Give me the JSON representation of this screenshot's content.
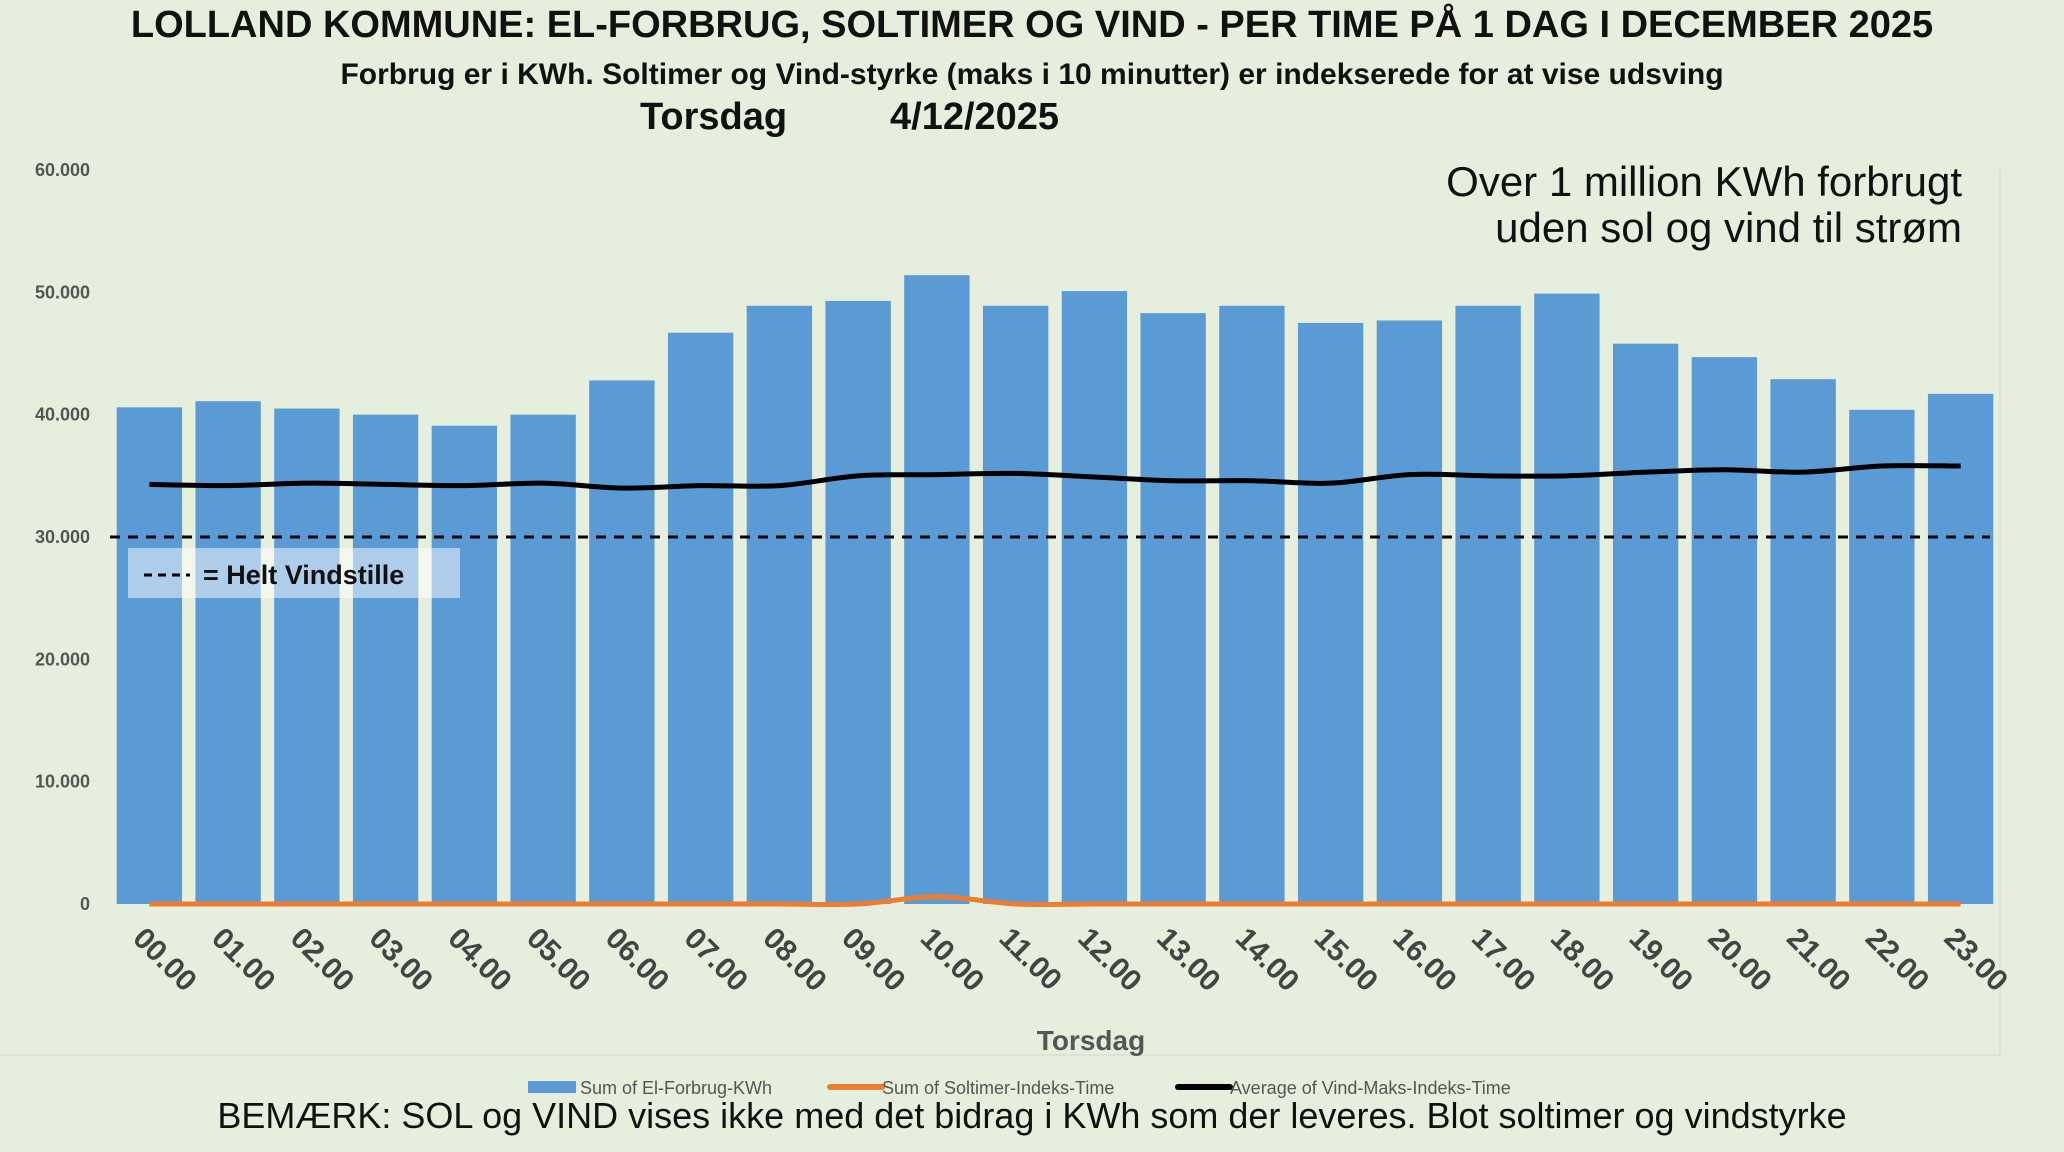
{
  "header": {
    "title": "LOLLAND KOMMUNE: EL-FORBRUG, SOLTIMER OG VIND - PER TIME PÅ 1 DAG I DECEMBER 2025",
    "subtitle": "Forbrug er i KWh. Soltimer og Vind-styrke (maks i 10 minutter) er indekserede for at vise udsving",
    "day": "Torsdag",
    "date": "4/12/2025"
  },
  "annotation": {
    "line1": "Over 1 million KWh forbrugt",
    "line2": "uden sol og vind til strøm"
  },
  "reference_label": "= Helt Vindstille",
  "footer_note": "BEMÆRK: SOL og VIND vises ikke med det bidrag i KWh som der leveres. Blot soltimer og vindstyrke",
  "colors": {
    "background": "#e6efdd",
    "bars": "#5b9bd5",
    "sun_line": "#ed7d31",
    "wind_line": "#000000"
  },
  "chart_data": {
    "type": "bar",
    "xlabel": "Torsdag",
    "ylabel": "",
    "ylim": [
      0,
      60000
    ],
    "yticks": [
      0,
      10000,
      20000,
      30000,
      40000,
      50000,
      60000
    ],
    "ytick_labels": [
      "0",
      "10.000",
      "20.000",
      "30.000",
      "40.000",
      "50.000",
      "60.000"
    ],
    "categories": [
      "00.00",
      "01.00",
      "02.00",
      "03.00",
      "04.00",
      "05.00",
      "06.00",
      "07.00",
      "08.00",
      "09.00",
      "10.00",
      "11.00",
      "12.00",
      "13.00",
      "14.00",
      "15.00",
      "16.00",
      "17.00",
      "18.00",
      "19.00",
      "20.00",
      "21.00",
      "22.00",
      "23.00"
    ],
    "series": [
      {
        "name": "Sum of El-Forbrug-KWh",
        "type": "bar",
        "values": [
          40600,
          41100,
          40500,
          40000,
          39100,
          40000,
          42800,
          46700,
          48900,
          49300,
          51400,
          48900,
          50100,
          48300,
          48900,
          47500,
          47700,
          48900,
          49900,
          45800,
          44700,
          42900,
          40400,
          41700
        ]
      },
      {
        "name": "Sum of Soltimer-Indeks-Time",
        "type": "line",
        "values": [
          0,
          0,
          0,
          0,
          0,
          0,
          0,
          0,
          0,
          0,
          600,
          0,
          0,
          0,
          0,
          0,
          0,
          0,
          0,
          0,
          0,
          0,
          0,
          0
        ]
      },
      {
        "name": "Average of Vind-Maks-Indeks-Time",
        "type": "line",
        "values": [
          34300,
          34200,
          34400,
          34300,
          34200,
          34400,
          34000,
          34200,
          34200,
          35000,
          35100,
          35200,
          34900,
          34600,
          34600,
          34400,
          35100,
          35000,
          35000,
          35300,
          35500,
          35300,
          35800,
          35800
        ]
      }
    ],
    "reference_line": {
      "value": 30000,
      "style": "dashed",
      "label": "= Helt Vindstille"
    },
    "legend_position": "bottom",
    "grid": false
  }
}
